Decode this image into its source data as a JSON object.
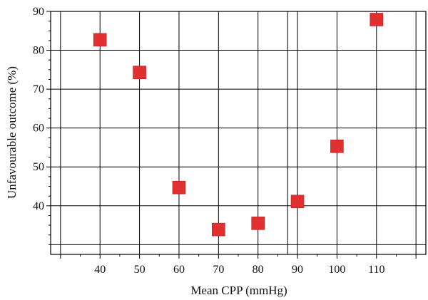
{
  "chart_data": {
    "type": "scatter",
    "title": "",
    "xlabel": "Mean CPP (mmHg)",
    "ylabel": "Unfavourable outcome (%)",
    "xlim": [
      27.5,
      122.5
    ],
    "ylim": [
      27.5,
      90
    ],
    "x_ticks": [
      40,
      50,
      60,
      70,
      80,
      90,
      100,
      110
    ],
    "x_tick_labels": [
      "40",
      "50",
      "60",
      "70",
      "80",
      "90",
      "100",
      "110"
    ],
    "y_ticks": [
      40,
      50,
      60,
      70,
      80,
      90
    ],
    "y_tick_labels": [
      "40",
      "50",
      "60",
      "70",
      "80",
      "90"
    ],
    "grid": true,
    "marker": "square",
    "marker_color": "#e03030",
    "points": [
      {
        "x": 40,
        "y": 82.7
      },
      {
        "x": 50,
        "y": 74.3
      },
      {
        "x": 60,
        "y": 44.7
      },
      {
        "x": 70,
        "y": 33.9
      },
      {
        "x": 80,
        "y": 35.5
      },
      {
        "x": 90,
        "y": 41.1
      },
      {
        "x": 100,
        "y": 55.3
      },
      {
        "x": 110,
        "y": 87.9
      }
    ]
  }
}
